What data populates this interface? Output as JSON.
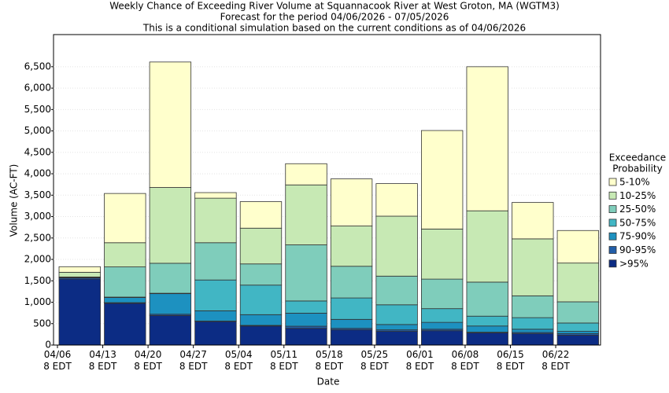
{
  "chart_data": {
    "type": "stacked_bar",
    "title": "Weekly Chance of Exceeding River Volume at Squannacook River at West Groton, MA (WGTM3)",
    "subtitle": "Forecast for the period 04/06/2026 - 07/05/2026",
    "note": "This is a conditional simulation based on the current conditions as of 04/06/2026",
    "x_label": "Date",
    "y_label": "Volume (AC-FT)",
    "legend_title": [
      "Exceedance",
      "Probability"
    ],
    "legend_position": "right",
    "grid": true,
    "categories": [
      "04/06 8 EDT",
      "04/13 8 EDT",
      "04/20 8 EDT",
      "04/27 8 EDT",
      "05/04 8 EDT",
      "05/11 8 EDT",
      "05/18 8 EDT",
      "05/25 8 EDT",
      "06/01 8 EDT",
      "06/08 8 EDT",
      "06/15 8 EDT",
      "06/22 8 EDT"
    ],
    "series": [
      {
        "name": ">95%",
        "color": "#0c2c84",
        "values": [
          1540,
          975,
          690,
          550,
          445,
          390,
          355,
          320,
          335,
          285,
          265,
          230
        ]
      },
      {
        "name": "90-95%",
        "color": "#225ea8",
        "values": [
          30,
          15,
          30,
          10,
          15,
          50,
          35,
          35,
          35,
          15,
          30,
          35
        ]
      },
      {
        "name": "75-90%",
        "color": "#1d91c0",
        "values": [
          5,
          120,
          480,
          240,
          250,
          305,
          210,
          125,
          160,
          145,
          75,
          55
        ]
      },
      {
        "name": "50-75%",
        "color": "#41b6c4",
        "values": [
          5,
          10,
          10,
          720,
          690,
          285,
          500,
          460,
          320,
          230,
          270,
          195
        ]
      },
      {
        "name": "25-50%",
        "color": "#7fcdbb",
        "values": [
          10,
          705,
          700,
          870,
          495,
          1310,
          740,
          670,
          690,
          795,
          510,
          495
        ]
      },
      {
        "name": "10-25%",
        "color": "#c7e9b4",
        "values": [
          110,
          565,
          1770,
          1040,
          835,
          1400,
          940,
          1400,
          1170,
          1665,
          1330,
          905
        ]
      },
      {
        "name": "5-10%",
        "color": "#ffffcc",
        "values": [
          130,
          1150,
          2930,
          130,
          620,
          495,
          1100,
          760,
          2300,
          3365,
          850,
          760
        ]
      }
    ],
    "ylim": [
      0,
      7250
    ],
    "yticks": [
      0,
      500,
      {
        "value": 1000,
        "label": "1,000"
      },
      {
        "value": 1500,
        "label": "1,500"
      },
      {
        "value": 2000,
        "label": "2,000"
      },
      {
        "value": 2500,
        "label": "2,500"
      },
      {
        "value": 3000,
        "label": "3,000"
      },
      {
        "value": 3500,
        "label": "3,500"
      },
      {
        "value": 4000,
        "label": "4,000"
      },
      {
        "value": 4500,
        "label": "4,500"
      },
      {
        "value": 5000,
        "label": "5,000"
      },
      {
        "value": 5500,
        "label": "5,500"
      },
      {
        "value": 6000,
        "label": "6,000"
      },
      {
        "value": 6500,
        "label": "6,500"
      }
    ]
  }
}
